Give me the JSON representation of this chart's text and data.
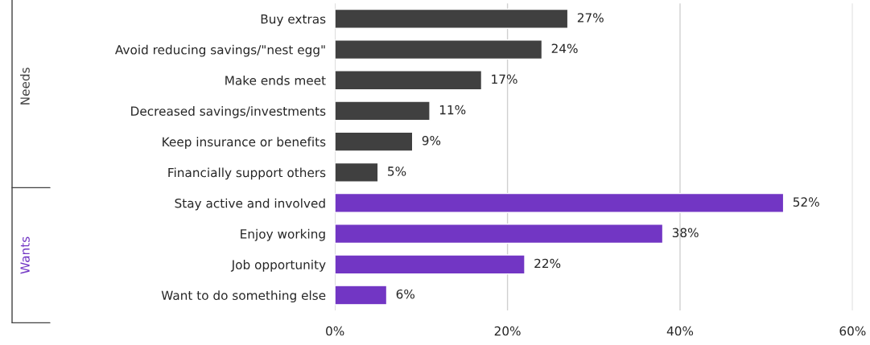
{
  "chart_data": {
    "type": "bar",
    "orientation": "horizontal",
    "categories": [
      "Buy extras",
      "Avoid reducing savings/\"nest egg\"",
      "Make ends meet",
      "Decreased savings/investments",
      "Keep insurance or benefits",
      "Financially support others",
      "Stay active and involved",
      "Enjoy working",
      "Job opportunity",
      "Want to do something else"
    ],
    "values": [
      27,
      24,
      17,
      11,
      9,
      5,
      52,
      38,
      22,
      6
    ],
    "value_labels": [
      "27%",
      "24%",
      "17%",
      "11%",
      "9%",
      "5%",
      "52%",
      "38%",
      "22%",
      "6%"
    ],
    "colors": [
      "#404040",
      "#404040",
      "#404040",
      "#404040",
      "#404040",
      "#404040",
      "#7236c4",
      "#7236c4",
      "#7236c4",
      "#7236c4"
    ],
    "xlim": [
      0,
      60
    ],
    "xticks": [
      {
        "value": 0,
        "label": "0%"
      },
      {
        "value": 20,
        "label": "20%"
      },
      {
        "value": 40,
        "label": "40%"
      },
      {
        "value": 60,
        "label": "60%"
      }
    ],
    "grid": "x",
    "annotations": [
      "Needs",
      "Wants"
    ]
  }
}
